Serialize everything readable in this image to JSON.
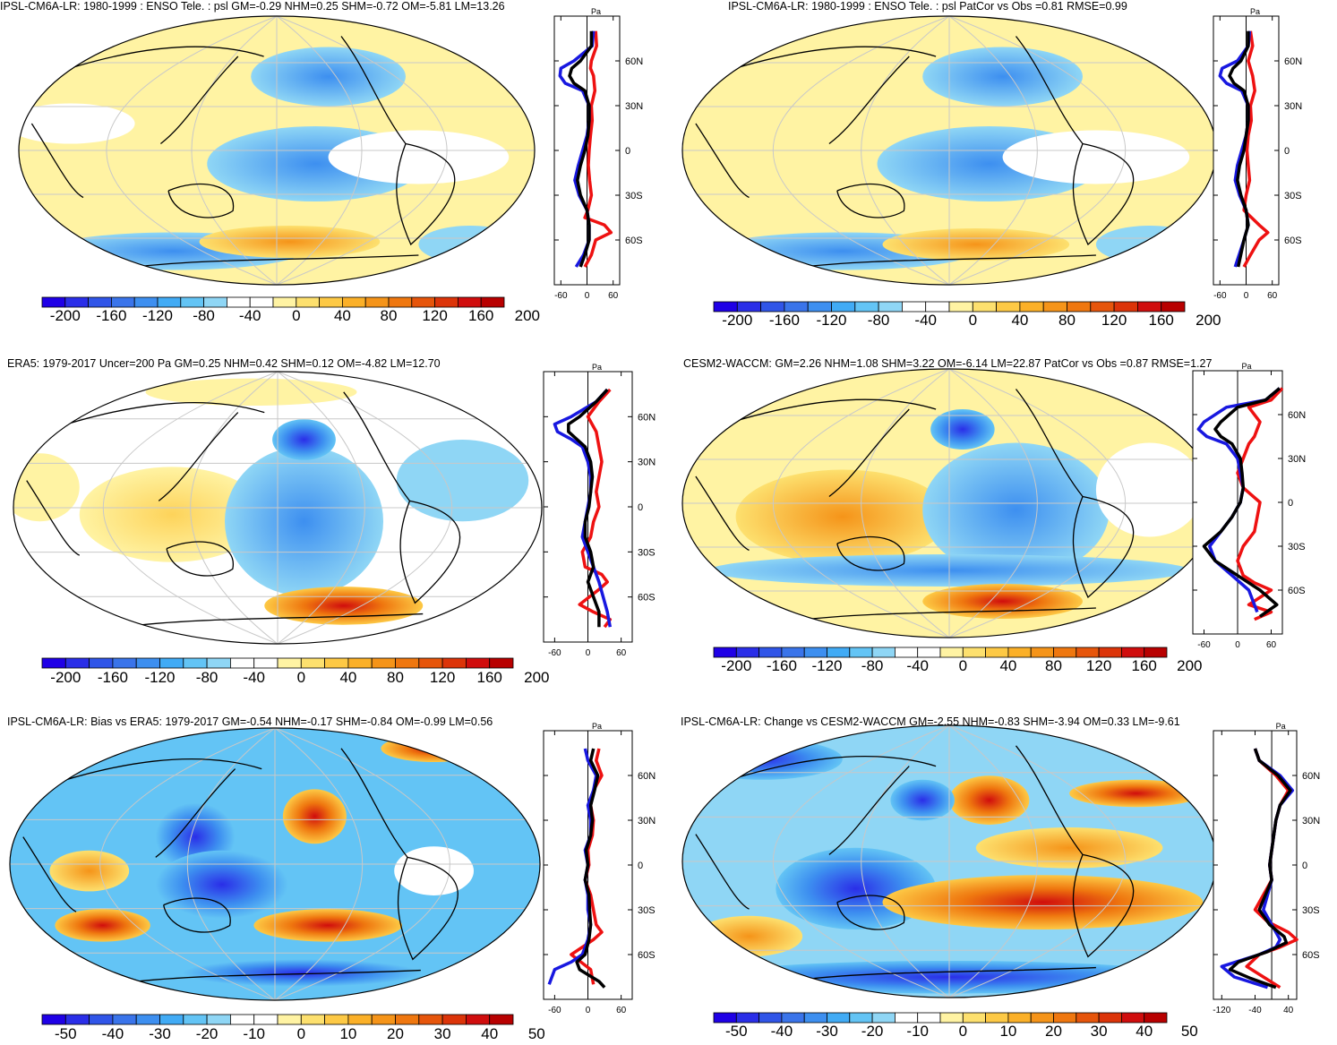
{
  "panels": [
    {
      "id": "p1",
      "title": "IPSL-CM6A-LR: 1980-1999 : ENSO Tele. : psl GM=-0.29 NHM=0.25 SHM=-0.72 OM=-5.81 LM=13.26",
      "colorbar_ticks": [
        "-200",
        "-160",
        "-120",
        "-80",
        "-40",
        "0",
        "40",
        "80",
        "120",
        "160",
        "200"
      ]
    },
    {
      "id": "p2",
      "title": "IPSL-CM6A-LR: 1980-1999 : ENSO Tele. : psl PatCor vs Obs =0.81 RMSE=0.99",
      "colorbar_ticks": [
        "-200",
        "-160",
        "-120",
        "-80",
        "-40",
        "0",
        "40",
        "80",
        "120",
        "160",
        "200"
      ]
    },
    {
      "id": "p3",
      "title": "ERA5: 1979-2017 Uncer=200 Pa GM=0.25 NHM=0.42 SHM=0.12 OM=-4.82 LM=12.70",
      "colorbar_ticks": [
        "-200",
        "-160",
        "-120",
        "-80",
        "-40",
        "0",
        "40",
        "80",
        "120",
        "160",
        "200"
      ]
    },
    {
      "id": "p4",
      "title": "CESM2-WACCM: GM=2.26 NHM=1.08 SHM=3.22 OM=-6.14 LM=22.87 PatCor vs Obs =0.87 RMSE=1.27",
      "colorbar_ticks": [
        "-200",
        "-160",
        "-120",
        "-80",
        "-40",
        "0",
        "40",
        "80",
        "120",
        "160",
        "200"
      ]
    },
    {
      "id": "p5",
      "title": "IPSL-CM6A-LR: Bias vs ERA5: 1979-2017 GM=-0.54 NHM=-0.17 SHM=-0.84 OM=-0.99 LM=0.56",
      "colorbar_ticks": [
        "-50",
        "-40",
        "-30",
        "-20",
        "-10",
        "0",
        "10",
        "20",
        "30",
        "40",
        "50"
      ]
    },
    {
      "id": "p6",
      "title": "IPSL-CM6A-LR: Change vs CESM2-WACCM GM=-2.55 NHM=-0.83 SHM=-3.94 OM=0.33 LM=-9.61",
      "colorbar_ticks": [
        "-50",
        "-40",
        "-30",
        "-20",
        "-10",
        "0",
        "10",
        "20",
        "30",
        "40",
        "50"
      ]
    }
  ],
  "profile_units": "Pa",
  "profile_lat_labels": [
    "60N",
    "30N",
    "0",
    "30S",
    "60S"
  ],
  "profile_x_ticks_standard": [
    "-60",
    "0",
    "60"
  ],
  "profile_x_ticks_change": [
    "-120",
    "-40",
    "40"
  ],
  "colors": {
    "colorbar": [
      "#1f00e6",
      "#2a2ee8",
      "#3055e8",
      "#3a74ea",
      "#3d8ff0",
      "#41abf5",
      "#63c4f5",
      "#8fd6f5",
      "#ffffff",
      "#ffffff",
      "#fff3a3",
      "#fde06e",
      "#fdc945",
      "#fbb028",
      "#f59419",
      "#ef770f",
      "#e6550b",
      "#dc3409",
      "#d00d0d",
      "#b80000"
    ],
    "profile_model": "#ee1111",
    "profile_obs": "#1818e0",
    "profile_mean": "#000000"
  },
  "chart_data": [
    {
      "type": "line",
      "panel": "p1",
      "ylim": [
        -90,
        90
      ],
      "series": [
        {
          "color": "#ee1111",
          "x": [
            20,
            22,
            10,
            8,
            15,
            18,
            10,
            12,
            8,
            5,
            3,
            6,
            10,
            2,
            -5,
            40,
            55,
            20,
            10,
            -5
          ],
          "y": [
            80,
            70,
            60,
            55,
            50,
            40,
            30,
            20,
            10,
            0,
            -10,
            -20,
            -30,
            -40,
            -45,
            -50,
            -55,
            -60,
            -70,
            -78
          ]
        },
        {
          "color": "#1818e0",
          "x": [
            15,
            12,
            -30,
            -60,
            -62,
            -50,
            -10,
            5,
            5,
            0,
            -10,
            -20,
            -28,
            -18,
            0,
            5,
            5,
            -8,
            -25
          ],
          "y": [
            80,
            70,
            60,
            55,
            50,
            45,
            40,
            30,
            20,
            10,
            0,
            -10,
            -20,
            -30,
            -40,
            -50,
            -60,
            -70,
            -78
          ]
        },
        {
          "color": "#000000",
          "x": [
            10,
            10,
            -15,
            -35,
            -40,
            -30,
            -5,
            5,
            5,
            2,
            -5,
            -15,
            -22,
            -15,
            0,
            5,
            5,
            -5,
            -15
          ],
          "y": [
            80,
            70,
            60,
            55,
            50,
            45,
            40,
            30,
            20,
            10,
            0,
            -10,
            -20,
            -30,
            -40,
            -50,
            -60,
            -70,
            -78
          ]
        }
      ]
    },
    {
      "type": "line",
      "panel": "p2",
      "ylim": [
        -90,
        90
      ],
      "series": [
        {
          "color": "#ee1111",
          "x": [
            10,
            15,
            5,
            15,
            20,
            10,
            12,
            5,
            2,
            5,
            8,
            0,
            -5,
            30,
            50,
            30,
            10,
            -5
          ],
          "y": [
            80,
            70,
            60,
            50,
            40,
            30,
            20,
            10,
            0,
            -10,
            -20,
            -30,
            -40,
            -50,
            -55,
            -60,
            -70,
            -78
          ]
        },
        {
          "color": "#1818e0",
          "x": [
            8,
            5,
            -20,
            -55,
            -60,
            -45,
            -10,
            5,
            5,
            0,
            -10,
            -20,
            -25,
            -15,
            0,
            5,
            -5,
            -25
          ],
          "y": [
            80,
            70,
            60,
            55,
            50,
            45,
            40,
            30,
            20,
            10,
            0,
            -10,
            -20,
            -30,
            -40,
            -50,
            -60,
            -78
          ]
        },
        {
          "color": "#000000",
          "x": [
            5,
            5,
            -12,
            -30,
            -38,
            -28,
            -5,
            5,
            5,
            0,
            -5,
            -15,
            -20,
            -12,
            0,
            5,
            -5,
            -18
          ],
          "y": [
            80,
            70,
            60,
            55,
            50,
            45,
            40,
            30,
            20,
            10,
            0,
            -10,
            -20,
            -30,
            -40,
            -50,
            -60,
            -78
          ]
        }
      ]
    },
    {
      "type": "line",
      "panel": "p3",
      "ylim": [
        -90,
        90
      ],
      "series": [
        {
          "color": "#ee1111",
          "x": [
            40,
            20,
            0,
            15,
            20,
            25,
            20,
            15,
            20,
            10,
            5,
            -10,
            -5,
            25,
            35,
            20,
            -15,
            10,
            40,
            30
          ],
          "y": [
            78,
            70,
            60,
            50,
            40,
            30,
            20,
            10,
            0,
            -10,
            -20,
            -30,
            -40,
            -45,
            -50,
            -55,
            -65,
            -70,
            -75,
            -80
          ]
        },
        {
          "color": "#1818e0",
          "x": [
            35,
            15,
            -30,
            -60,
            -55,
            -30,
            -10,
            0,
            5,
            5,
            0,
            -5,
            -10,
            0,
            10,
            20,
            35,
            40
          ],
          "y": [
            78,
            70,
            60,
            55,
            50,
            45,
            40,
            30,
            20,
            10,
            0,
            -10,
            -20,
            -30,
            -40,
            -50,
            -70,
            -80
          ]
        },
        {
          "color": "#000000",
          "x": [
            35,
            15,
            -15,
            -35,
            -35,
            -20,
            -5,
            5,
            8,
            5,
            2,
            -5,
            -5,
            5,
            10,
            0,
            20,
            20
          ],
          "y": [
            78,
            70,
            60,
            55,
            50,
            45,
            40,
            30,
            20,
            10,
            0,
            -10,
            -20,
            -30,
            -40,
            -50,
            -70,
            -80
          ]
        }
      ]
    },
    {
      "type": "line",
      "panel": "p4",
      "ylim": [
        -90,
        90
      ],
      "series": [
        {
          "color": "#ee1111",
          "x": [
            80,
            60,
            20,
            40,
            35,
            30,
            20,
            10,
            0,
            10,
            40,
            30,
            10,
            0,
            10,
            30,
            60,
            20,
            60,
            30
          ],
          "y": [
            78,
            70,
            65,
            55,
            50,
            45,
            40,
            30,
            20,
            10,
            0,
            -20,
            -30,
            -40,
            -50,
            -55,
            -60,
            -70,
            -75,
            -80
          ]
        },
        {
          "color": "#1818e0",
          "x": [
            75,
            50,
            -20,
            -60,
            -70,
            -55,
            -20,
            0,
            5,
            10,
            5,
            -10,
            -30,
            -50,
            -40,
            -10,
            20,
            35
          ],
          "y": [
            78,
            70,
            65,
            55,
            50,
            45,
            40,
            30,
            20,
            10,
            0,
            -10,
            -20,
            -30,
            -40,
            -50,
            -60,
            -75
          ]
        },
        {
          "color": "#000000",
          "x": [
            75,
            50,
            0,
            -30,
            -40,
            -30,
            -10,
            5,
            8,
            10,
            5,
            -10,
            -30,
            -60,
            -40,
            0,
            40,
            70,
            40
          ],
          "y": [
            78,
            70,
            65,
            55,
            50,
            45,
            40,
            30,
            20,
            10,
            0,
            -10,
            -20,
            -30,
            -40,
            -50,
            -60,
            -70,
            -78
          ]
        }
      ]
    },
    {
      "type": "line",
      "panel": "p5",
      "ylim": [
        -90,
        90
      ],
      "series": [
        {
          "color": "#ee1111",
          "x": [
            20,
            15,
            25,
            10,
            5,
            10,
            8,
            0,
            2,
            -5,
            5,
            10,
            15,
            25,
            10,
            -10,
            -30,
            5,
            10
          ],
          "y": [
            78,
            70,
            60,
            50,
            40,
            30,
            20,
            10,
            0,
            -10,
            -20,
            -30,
            -40,
            -45,
            -50,
            -55,
            -60,
            -70,
            -80
          ]
        },
        {
          "color": "#1818e0",
          "x": [
            -5,
            0,
            15,
            10,
            0,
            5,
            5,
            -5,
            0,
            -5,
            0,
            0,
            5,
            0,
            -10,
            -30,
            -60,
            -70
          ],
          "y": [
            78,
            70,
            60,
            50,
            40,
            30,
            20,
            10,
            0,
            -10,
            -20,
            -30,
            -40,
            -50,
            -60,
            -65,
            -70,
            -80
          ]
        },
        {
          "color": "#000000",
          "x": [
            10,
            5,
            18,
            12,
            5,
            8,
            5,
            -3,
            0,
            -5,
            2,
            3,
            5,
            2,
            -5,
            -20,
            -15,
            20,
            30
          ],
          "y": [
            78,
            70,
            60,
            50,
            40,
            30,
            20,
            10,
            0,
            -10,
            -20,
            -30,
            -40,
            -50,
            -60,
            -65,
            -70,
            -78,
            -82
          ]
        }
      ]
    },
    {
      "type": "line",
      "panel": "p6",
      "ylim": [
        -90,
        90
      ],
      "series": [
        {
          "color": "#ee1111",
          "x": [
            -40,
            -30,
            10,
            40,
            20,
            10,
            5,
            0,
            -5,
            0,
            -20,
            -40,
            -10,
            40,
            60,
            20,
            -30,
            -60,
            -20,
            20
          ],
          "y": [
            78,
            70,
            60,
            50,
            40,
            30,
            20,
            10,
            0,
            -10,
            -20,
            -30,
            -38,
            -45,
            -50,
            -55,
            -60,
            -68,
            -75,
            -82
          ]
        },
        {
          "color": "#1818e0",
          "x": [
            -40,
            -30,
            20,
            50,
            20,
            10,
            5,
            0,
            -5,
            0,
            -10,
            -20,
            0,
            20,
            10,
            -30,
            -120,
            -90,
            -10
          ],
          "y": [
            78,
            70,
            60,
            50,
            40,
            30,
            20,
            10,
            0,
            -10,
            -20,
            -30,
            -40,
            -50,
            -55,
            -60,
            -68,
            -75,
            -82
          ]
        },
        {
          "color": "#000000",
          "x": [
            -40,
            -30,
            15,
            45,
            20,
            10,
            5,
            0,
            -5,
            0,
            -15,
            -30,
            -5,
            30,
            35,
            -10,
            -80,
            -100,
            -50,
            10
          ],
          "y": [
            78,
            70,
            60,
            50,
            40,
            30,
            20,
            10,
            0,
            -10,
            -20,
            -30,
            -40,
            -48,
            -52,
            -58,
            -65,
            -70,
            -76,
            -82
          ]
        }
      ]
    }
  ]
}
